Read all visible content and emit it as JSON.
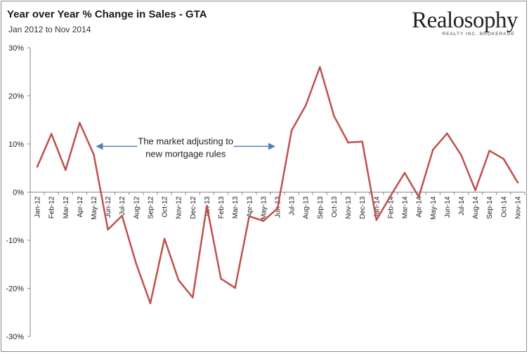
{
  "header": {
    "title": "Year over Year % Change in Sales - GTA",
    "subtitle": "Jan 2012 to Nov 2014"
  },
  "logo": {
    "name": "Realosophy",
    "tagline": "REALTY INC. BROKERAGE"
  },
  "chart_data": {
    "type": "line",
    "title": "Year over Year % Change in Sales - GTA",
    "subtitle": "Jan 2012 to Nov 2014",
    "xlabel": "",
    "ylabel": "",
    "ylim": [
      -30,
      30
    ],
    "yticks": [
      30,
      20,
      10,
      0,
      -10,
      -20,
      -30
    ],
    "ytick_labels": [
      "30%",
      "20%",
      "10%",
      "0%",
      "-10%",
      "-20%",
      "-30%"
    ],
    "grid": false,
    "legend": "none",
    "line_color": "#c0504d",
    "arrow_color": "#4f81bd",
    "categories": [
      "Jan-12",
      "Feb-12",
      "Mar-12",
      "Apr-12",
      "May-12",
      "Jun-12",
      "Jul-12",
      "Aug-12",
      "Sep-12",
      "Oct-12",
      "Nov-12",
      "Dec-12",
      "Jan-13",
      "Feb-13",
      "Mar-13",
      "Apr-13",
      "May-13",
      "Jun-13",
      "Jul-13",
      "Aug-13",
      "Sep-13",
      "Oct-13",
      "Nov-13",
      "Dec-13",
      "Jan-14",
      "Feb-14",
      "Mar-14",
      "Apr-14",
      "May-14",
      "Jun-14",
      "Jul-14",
      "Aug-14",
      "Sep-14",
      "Oct-14",
      "Nov-14"
    ],
    "series": [
      {
        "values": [
          5.3,
          12.1,
          4.6,
          14.4,
          7.8,
          -7.8,
          -4.9,
          -14.9,
          -23.1,
          -9.7,
          -18.3,
          -21.9,
          -2.9,
          -18.0,
          -19.9,
          -5.0,
          -6.0,
          -3.4,
          12.8,
          18.0,
          26.0,
          15.8,
          10.3,
          10.5,
          -5.8,
          -0.8,
          4.0,
          -1.0,
          8.8,
          12.2,
          7.7,
          0.4,
          8.6,
          6.9,
          2.0
        ]
      }
    ],
    "annotations": [
      {
        "text_lines": [
          "The market adjusting to",
          "new mortgage rules"
        ],
        "arrow_from_category": "May-12",
        "arrow_to_category": "Jun-13",
        "level": 9.5
      }
    ]
  }
}
